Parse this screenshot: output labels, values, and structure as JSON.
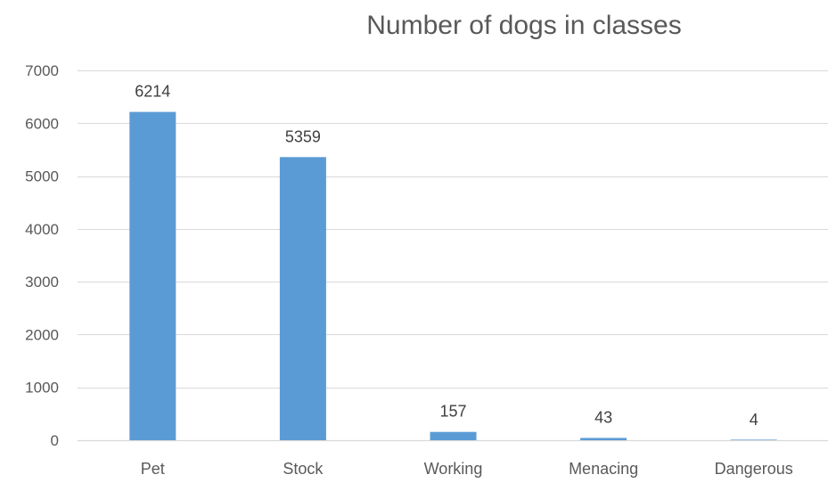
{
  "chart_data": {
    "type": "bar",
    "title": "Number of dogs in classes",
    "xlabel": "",
    "ylabel": "",
    "categories": [
      "Pet",
      "Stock",
      "Working",
      "Menacing",
      "Dangerous"
    ],
    "values": [
      6214,
      5359,
      157,
      43,
      4
    ],
    "data_labels": [
      "6214",
      "5359",
      "157",
      "43",
      "4"
    ],
    "ylim": [
      0,
      7000
    ],
    "yticks": [
      0,
      1000,
      2000,
      3000,
      4000,
      5000,
      6000,
      7000
    ],
    "grid": true,
    "legend": "none",
    "bar_color": "#5b9bd5"
  }
}
